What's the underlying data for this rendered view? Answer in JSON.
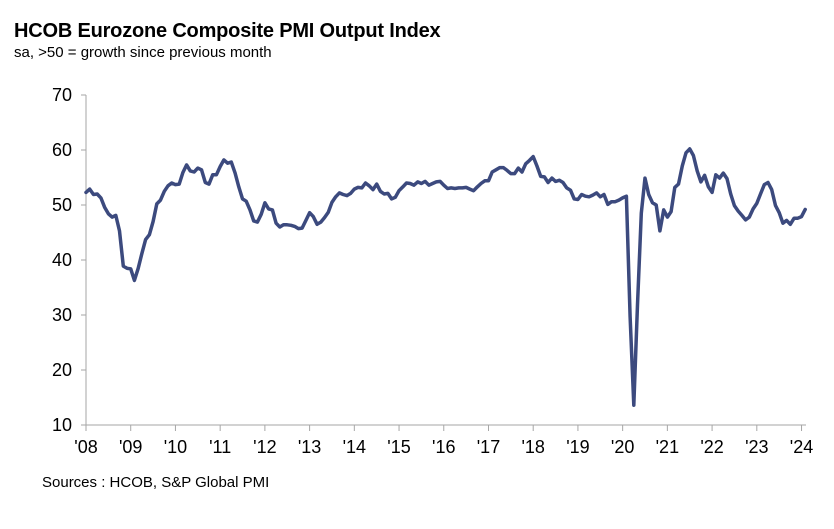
{
  "title": "HCOB Eurozone Composite PMI Output Index",
  "subtitle": "sa, >50 = growth  since previous  month",
  "source": "Sources : HCOB, S&P Global PMI",
  "chart_data": {
    "type": "line",
    "line_color": "#3c4a7e",
    "axis_color": "#a6a6a6",
    "grid": false,
    "legend": "none",
    "ylim": [
      10,
      70
    ],
    "yticks": [
      10,
      20,
      30,
      40,
      50,
      60,
      70
    ],
    "xlim": [
      2008.0,
      2024.1
    ],
    "xticks": [
      2008,
      2009,
      2010,
      2011,
      2012,
      2013,
      2014,
      2015,
      2016,
      2017,
      2018,
      2019,
      2020,
      2021,
      2022,
      2023,
      2024
    ],
    "xtick_labels": [
      "'08",
      "'09",
      "'10",
      "'11",
      "'12",
      "'13",
      "'14",
      "'15",
      "'16",
      "'17",
      "'18",
      "'19",
      "'20",
      "'21",
      "'22",
      "'23",
      "'24"
    ],
    "x": [
      2008.0,
      2008.083,
      2008.167,
      2008.25,
      2008.333,
      2008.417,
      2008.5,
      2008.583,
      2008.667,
      2008.75,
      2008.833,
      2008.917,
      2009.0,
      2009.083,
      2009.167,
      2009.25,
      2009.333,
      2009.417,
      2009.5,
      2009.583,
      2009.667,
      2009.75,
      2009.833,
      2009.917,
      2010.0,
      2010.083,
      2010.167,
      2010.25,
      2010.333,
      2010.417,
      2010.5,
      2010.583,
      2010.667,
      2010.75,
      2010.833,
      2010.917,
      2011.0,
      2011.083,
      2011.167,
      2011.25,
      2011.333,
      2011.417,
      2011.5,
      2011.583,
      2011.667,
      2011.75,
      2011.833,
      2011.917,
      2012.0,
      2012.083,
      2012.167,
      2012.25,
      2012.333,
      2012.417,
      2012.5,
      2012.583,
      2012.667,
      2012.75,
      2012.833,
      2012.917,
      2013.0,
      2013.083,
      2013.167,
      2013.25,
      2013.333,
      2013.417,
      2013.5,
      2013.583,
      2013.667,
      2013.75,
      2013.833,
      2013.917,
      2014.0,
      2014.083,
      2014.167,
      2014.25,
      2014.333,
      2014.417,
      2014.5,
      2014.583,
      2014.667,
      2014.75,
      2014.833,
      2014.917,
      2015.0,
      2015.083,
      2015.167,
      2015.25,
      2015.333,
      2015.417,
      2015.5,
      2015.583,
      2015.667,
      2015.75,
      2015.833,
      2015.917,
      2016.0,
      2016.083,
      2016.167,
      2016.25,
      2016.333,
      2016.417,
      2016.5,
      2016.583,
      2016.667,
      2016.75,
      2016.833,
      2016.917,
      2017.0,
      2017.083,
      2017.167,
      2017.25,
      2017.333,
      2017.417,
      2017.5,
      2017.583,
      2017.667,
      2017.75,
      2017.833,
      2017.917,
      2018.0,
      2018.083,
      2018.167,
      2018.25,
      2018.333,
      2018.417,
      2018.5,
      2018.583,
      2018.667,
      2018.75,
      2018.833,
      2018.917,
      2019.0,
      2019.083,
      2019.167,
      2019.25,
      2019.333,
      2019.417,
      2019.5,
      2019.583,
      2019.667,
      2019.75,
      2019.833,
      2019.917,
      2020.0,
      2020.083,
      2020.167,
      2020.25,
      2020.333,
      2020.417,
      2020.5,
      2020.583,
      2020.667,
      2020.75,
      2020.833,
      2020.917,
      2021.0,
      2021.083,
      2021.167,
      2021.25,
      2021.333,
      2021.417,
      2021.5,
      2021.583,
      2021.667,
      2021.75,
      2021.833,
      2021.917,
      2022.0,
      2022.083,
      2022.167,
      2022.25,
      2022.333,
      2022.417,
      2022.5,
      2022.583,
      2022.667,
      2022.75,
      2022.833,
      2022.917,
      2023.0,
      2023.083,
      2023.167,
      2023.25,
      2023.333,
      2023.417,
      2023.5,
      2023.583,
      2023.667,
      2023.75,
      2023.833,
      2023.917,
      2024.0,
      2024.083
    ],
    "series": [
      {
        "values": [
          52.3,
          52.9,
          51.9,
          52.0,
          51.3,
          49.6,
          48.4,
          47.8,
          48.1,
          45.3,
          38.9,
          38.5,
          38.4,
          36.3,
          38.5,
          41.2,
          43.7,
          44.6,
          47.0,
          50.2,
          50.9,
          52.5,
          53.5,
          54.0,
          53.7,
          53.8,
          55.9,
          57.3,
          56.2,
          56.0,
          56.7,
          56.4,
          54.1,
          53.8,
          55.5,
          55.5,
          57.0,
          58.2,
          57.6,
          57.8,
          55.8,
          53.3,
          51.1,
          50.7,
          49.1,
          47.1,
          46.9,
          48.3,
          50.4,
          49.3,
          49.1,
          46.7,
          46.0,
          46.4,
          46.4,
          46.3,
          46.1,
          45.7,
          45.8,
          47.2,
          48.6,
          47.9,
          46.5,
          46.9,
          47.7,
          48.7,
          50.5,
          51.5,
          52.2,
          51.9,
          51.7,
          52.1,
          52.9,
          53.2,
          53.1,
          54.0,
          53.5,
          52.8,
          53.8,
          52.5,
          52.0,
          52.1,
          51.1,
          51.4,
          52.6,
          53.3,
          54.0,
          53.9,
          53.6,
          54.2,
          53.9,
          54.3,
          53.6,
          53.9,
          54.2,
          54.3,
          53.6,
          53.0,
          53.1,
          53.0,
          53.1,
          53.1,
          53.2,
          52.9,
          52.6,
          53.3,
          53.9,
          54.4,
          54.4,
          56.0,
          56.4,
          56.8,
          56.8,
          56.3,
          55.7,
          55.7,
          56.7,
          56.0,
          57.5,
          58.1,
          58.8,
          57.1,
          55.2,
          55.1,
          54.1,
          54.9,
          54.3,
          54.5,
          54.1,
          53.1,
          52.7,
          51.1,
          51.0,
          51.9,
          51.6,
          51.5,
          51.8,
          52.2,
          51.5,
          51.9,
          50.1,
          50.6,
          50.6,
          50.9,
          51.3,
          51.6,
          29.7,
          13.6,
          31.9,
          48.5,
          54.9,
          51.9,
          50.4,
          50.0,
          45.3,
          49.1,
          47.8,
          48.8,
          53.2,
          53.8,
          57.1,
          59.5,
          60.2,
          59.0,
          56.2,
          54.2,
          55.4,
          53.3,
          52.3,
          55.5,
          54.9,
          55.8,
          54.8,
          52.0,
          49.9,
          48.9,
          48.1,
          47.3,
          47.8,
          49.3,
          50.3,
          52.0,
          53.7,
          54.1,
          52.8,
          49.9,
          48.6,
          46.7,
          47.2,
          46.5,
          47.6,
          47.6,
          47.9,
          49.2
        ]
      }
    ]
  }
}
